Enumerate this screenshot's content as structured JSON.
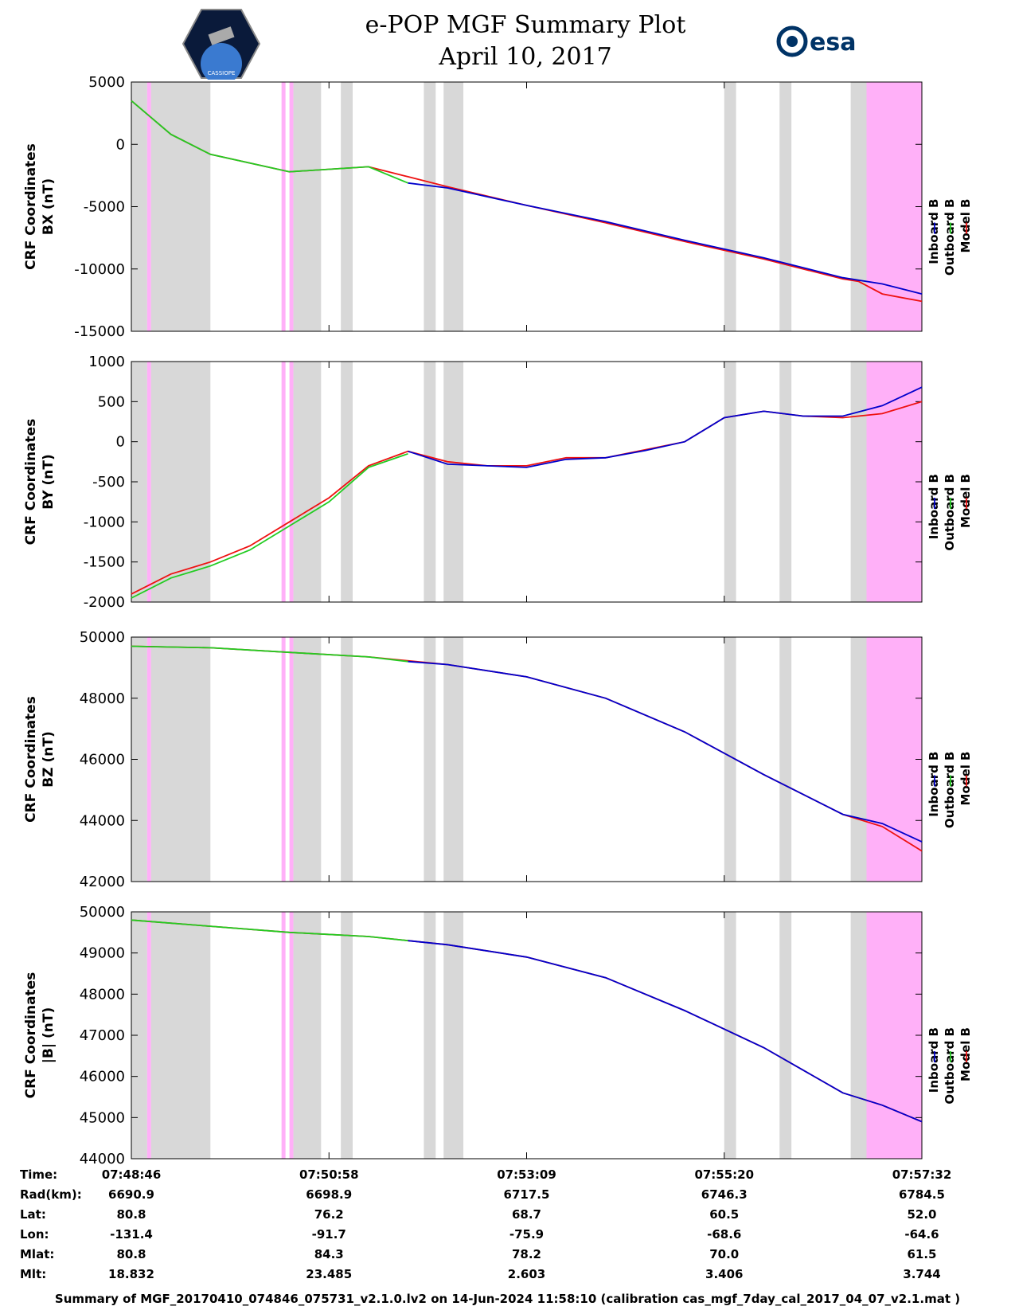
{
  "header": {
    "title_line1": "e-POP MGF Summary Plot",
    "title_line2": "April 10, 2017",
    "logo_left": "CASSIOPE",
    "logo_right": "esa"
  },
  "colors": {
    "inboard": "#0000cc",
    "outboard": "#22cc22",
    "model": "#ee1111",
    "gap_gray": "#d8d8d8",
    "gap_pink": "#ffb0f8"
  },
  "chart_data": [
    {
      "type": "line",
      "ylabel_line1": "CRF Coordinates",
      "ylabel_line2": "BX (nT)",
      "ylim": [
        -15000,
        5000
      ],
      "yticks": [
        "5000",
        "0",
        "-5000",
        "-10000",
        "-15000"
      ],
      "ytick_values": [
        5000,
        0,
        -5000,
        -10000,
        -15000
      ],
      "legend": [
        "Inboard B",
        "Outboard B",
        "Model B"
      ],
      "series": [
        {
          "name": "Model B",
          "t": [
            0,
            0.05,
            0.1,
            0.2,
            0.3,
            0.35,
            0.4,
            0.5,
            0.6,
            0.7,
            0.8,
            0.9,
            0.92,
            0.95,
            1.0
          ],
          "values": [
            3500,
            800,
            -800,
            -2200,
            -1800,
            -2600,
            -3400,
            -4900,
            -6300,
            -7800,
            -9200,
            -10800,
            -11000,
            -12000,
            -12600
          ]
        },
        {
          "name": "Inboard B",
          "t": [
            0.35,
            0.4,
            0.5,
            0.6,
            0.7,
            0.8,
            0.9,
            0.95,
            1.0
          ],
          "values": [
            -3100,
            -3500,
            -4900,
            -6200,
            -7700,
            -9100,
            -10700,
            -11200,
            -12000
          ]
        },
        {
          "name": "Outboard B",
          "t": [
            0,
            0.05,
            0.1,
            0.2,
            0.3,
            0.35
          ],
          "values": [
            3500,
            800,
            -800,
            -2200,
            -1800,
            -3100
          ]
        }
      ]
    },
    {
      "type": "line",
      "ylabel_line1": "CRF Coordinates",
      "ylabel_line2": "BY (nT)",
      "ylim": [
        -2000,
        1000
      ],
      "yticks": [
        "1000",
        "500",
        "0",
        "-500",
        "-1000",
        "-1500",
        "-2000"
      ],
      "ytick_values": [
        1000,
        500,
        0,
        -500,
        -1000,
        -1500,
        -2000
      ],
      "legend": [
        "Inboard B",
        "Outboard B",
        "Model B"
      ],
      "series": [
        {
          "name": "Model B",
          "t": [
            0,
            0.05,
            0.1,
            0.15,
            0.2,
            0.25,
            0.3,
            0.35,
            0.4,
            0.45,
            0.5,
            0.55,
            0.6,
            0.65,
            0.7,
            0.75,
            0.8,
            0.85,
            0.9,
            0.95,
            1.0
          ],
          "values": [
            -1900,
            -1650,
            -1500,
            -1300,
            -1000,
            -700,
            -300,
            -120,
            -250,
            -300,
            -300,
            -200,
            -200,
            -100,
            0,
            300,
            380,
            320,
            300,
            350,
            500
          ]
        },
        {
          "name": "Inboard B",
          "t": [
            0.35,
            0.4,
            0.45,
            0.5,
            0.55,
            0.6,
            0.65,
            0.7,
            0.75,
            0.8,
            0.85,
            0.9,
            0.95,
            1.0
          ],
          "values": [
            -120,
            -280,
            -300,
            -320,
            -220,
            -200,
            -110,
            0,
            300,
            380,
            320,
            320,
            450,
            680
          ]
        },
        {
          "name": "Outboard B",
          "t": [
            0,
            0.05,
            0.1,
            0.15,
            0.2,
            0.25,
            0.3,
            0.35
          ],
          "values": [
            -1950,
            -1700,
            -1550,
            -1350,
            -1050,
            -750,
            -320,
            -150
          ]
        }
      ]
    },
    {
      "type": "line",
      "ylabel_line1": "CRF Coordinates",
      "ylabel_line2": "BZ (nT)",
      "ylim": [
        42000,
        50000
      ],
      "yticks": [
        "50000",
        "48000",
        "46000",
        "44000",
        "42000"
      ],
      "ytick_values": [
        50000,
        48000,
        46000,
        44000,
        42000
      ],
      "legend": [
        "Inboard B",
        "Outboard B",
        "Model B"
      ],
      "series": [
        {
          "name": "Model B",
          "t": [
            0,
            0.1,
            0.2,
            0.3,
            0.4,
            0.5,
            0.6,
            0.7,
            0.8,
            0.9,
            0.95,
            1.0
          ],
          "values": [
            49700,
            49650,
            49500,
            49350,
            49100,
            48700,
            48000,
            46900,
            45500,
            44200,
            43800,
            43000
          ]
        },
        {
          "name": "Inboard B",
          "t": [
            0.35,
            0.4,
            0.5,
            0.6,
            0.7,
            0.8,
            0.9,
            0.95,
            1.0
          ],
          "values": [
            49200,
            49100,
            48700,
            48000,
            46900,
            45500,
            44200,
            43900,
            43300
          ]
        },
        {
          "name": "Outboard B",
          "t": [
            0,
            0.1,
            0.2,
            0.3,
            0.35
          ],
          "values": [
            49700,
            49650,
            49500,
            49350,
            49200
          ]
        }
      ]
    },
    {
      "type": "line",
      "ylabel_line1": "CRF Coordinates",
      "ylabel_line2": "|B| (nT)",
      "ylim": [
        44000,
        50000
      ],
      "yticks": [
        "50000",
        "49000",
        "48000",
        "47000",
        "46000",
        "45000",
        "44000"
      ],
      "ytick_values": [
        50000,
        49000,
        48000,
        47000,
        46000,
        45000,
        44000
      ],
      "legend": [
        "Inboard B",
        "Outboard B",
        "Model B"
      ],
      "series": [
        {
          "name": "Model B",
          "t": [
            0,
            0.1,
            0.2,
            0.3,
            0.4,
            0.5,
            0.6,
            0.7,
            0.8,
            0.9,
            0.95,
            1.0
          ],
          "values": [
            49800,
            49650,
            49500,
            49400,
            49200,
            48900,
            48400,
            47600,
            46700,
            45600,
            45300,
            44900
          ]
        },
        {
          "name": "Inboard B",
          "t": [
            0.35,
            0.4,
            0.5,
            0.6,
            0.7,
            0.8,
            0.9,
            0.95,
            1.0
          ],
          "values": [
            49300,
            49200,
            48900,
            48400,
            47600,
            46700,
            45600,
            45300,
            44900
          ]
        },
        {
          "name": "Outboard B",
          "t": [
            0,
            0.1,
            0.2,
            0.3,
            0.35
          ],
          "values": [
            49800,
            49650,
            49500,
            49400,
            49300
          ]
        }
      ]
    }
  ],
  "gaps": [
    {
      "start": 0.0,
      "end": 0.02,
      "kind": "gray"
    },
    {
      "start": 0.02,
      "end": 0.025,
      "kind": "pink"
    },
    {
      "start": 0.025,
      "end": 0.1,
      "kind": "gray"
    },
    {
      "start": 0.19,
      "end": 0.195,
      "kind": "pink"
    },
    {
      "start": 0.2,
      "end": 0.205,
      "kind": "pink"
    },
    {
      "start": 0.205,
      "end": 0.24,
      "kind": "gray"
    },
    {
      "start": 0.265,
      "end": 0.28,
      "kind": "gray"
    },
    {
      "start": 0.37,
      "end": 0.385,
      "kind": "gray"
    },
    {
      "start": 0.395,
      "end": 0.42,
      "kind": "gray"
    },
    {
      "start": 0.75,
      "end": 0.765,
      "kind": "gray"
    },
    {
      "start": 0.82,
      "end": 0.835,
      "kind": "gray"
    },
    {
      "start": 0.91,
      "end": 0.93,
      "kind": "gray"
    },
    {
      "start": 0.93,
      "end": 1.0,
      "kind": "pink"
    }
  ],
  "x_ticks": [
    0.0,
    0.25,
    0.5,
    0.75,
    1.0
  ],
  "info_table": {
    "labels": [
      "Time:",
      "Rad(km):",
      "Lat:",
      "Lon:",
      "Mlat:",
      "Mlt:"
    ],
    "columns": [
      [
        "07:48:46",
        "6690.9",
        "80.8",
        "-131.4",
        "80.8",
        "18.832"
      ],
      [
        "07:50:58",
        "6698.9",
        "76.2",
        "-91.7",
        "84.3",
        "23.485"
      ],
      [
        "07:53:09",
        "6717.5",
        "68.7",
        "-75.9",
        "78.2",
        "2.603"
      ],
      [
        "07:55:20",
        "6746.3",
        "60.5",
        "-68.6",
        "70.0",
        "3.406"
      ],
      [
        "07:57:32",
        "6784.5",
        "52.0",
        "-64.6",
        "61.5",
        "3.744"
      ]
    ]
  },
  "footer": "Summary of MGF_20170410_074846_075731_v2.1.0.lv2 on 14-Jun-2024 11:58:10 (calibration cas_mgf_7day_cal_2017_04_07_v2.1.mat )"
}
